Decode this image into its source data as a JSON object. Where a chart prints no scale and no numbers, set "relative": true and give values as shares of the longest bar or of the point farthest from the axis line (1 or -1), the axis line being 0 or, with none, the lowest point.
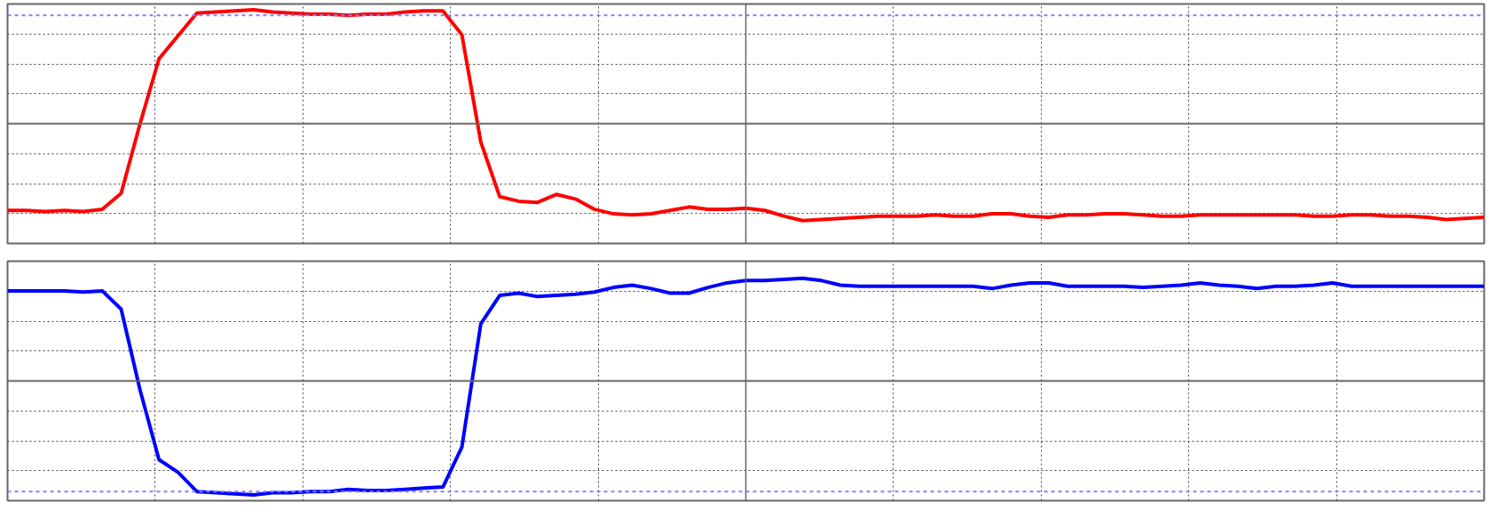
{
  "chart_data": [
    {
      "type": "line",
      "relative": true,
      "grid": true,
      "categories": [
        null,
        null,
        null,
        null,
        null,
        null,
        null,
        null,
        null,
        null,
        null,
        null,
        null,
        null,
        null,
        null,
        null,
        null,
        null,
        null,
        null,
        null,
        null,
        null,
        null,
        null,
        null,
        null,
        null,
        null,
        null,
        null,
        null,
        null,
        null,
        null,
        null,
        null,
        null,
        null,
        null,
        null,
        null,
        null,
        null,
        null,
        null,
        null,
        null,
        null,
        null,
        null,
        null,
        null,
        null,
        null,
        null,
        null,
        null,
        null,
        null,
        null,
        null,
        null,
        null,
        null,
        null,
        null,
        null,
        null,
        null,
        null,
        null,
        null,
        null,
        null,
        null,
        null,
        null
      ],
      "series": [
        {
          "color": "#ff0000",
          "values": [
            -0.76,
            -0.76,
            -0.77,
            -0.76,
            -0.77,
            -0.75,
            -0.61,
            0,
            0.57,
            0.77,
            0.97,
            0.98,
            0.99,
            1.0,
            0.98,
            0.97,
            0.96,
            0.96,
            0.95,
            0.96,
            0.96,
            0.98,
            0.99,
            0.99,
            0.78,
            -0.16,
            -0.64,
            -0.68,
            -0.69,
            -0.62,
            -0.66,
            -0.75,
            -0.79,
            -0.8,
            -0.79,
            -0.76,
            -0.73,
            -0.75,
            -0.75,
            -0.74,
            -0.76,
            -0.81,
            -0.85,
            -0.84,
            -0.83,
            -0.82,
            -0.81,
            -0.81,
            -0.81,
            -0.8,
            -0.81,
            -0.81,
            -0.79,
            -0.79,
            -0.81,
            -0.82,
            -0.8,
            -0.8,
            -0.79,
            -0.79,
            -0.8,
            -0.81,
            -0.81,
            -0.8,
            -0.8,
            -0.8,
            -0.8,
            -0.8,
            -0.8,
            -0.81,
            -0.81,
            -0.8,
            -0.8,
            -0.81,
            -0.81,
            -0.82,
            -0.84,
            -0.83,
            -0.82
          ]
        }
      ],
      "ref_lines": [
        {
          "axis": "y",
          "value": 0.95,
          "color": "#8080ff",
          "line_style": "dashed"
        }
      ]
    },
    {
      "type": "line",
      "relative": true,
      "grid": true,
      "categories": [
        null,
        null,
        null,
        null,
        null,
        null,
        null,
        null,
        null,
        null,
        null,
        null,
        null,
        null,
        null,
        null,
        null,
        null,
        null,
        null,
        null,
        null,
        null,
        null,
        null,
        null,
        null,
        null,
        null,
        null,
        null,
        null,
        null,
        null,
        null,
        null,
        null,
        null,
        null,
        null,
        null,
        null,
        null,
        null,
        null,
        null,
        null,
        null,
        null,
        null,
        null,
        null,
        null,
        null,
        null,
        null,
        null,
        null,
        null,
        null,
        null,
        null,
        null,
        null,
        null,
        null,
        null,
        null,
        null,
        null,
        null,
        null,
        null,
        null,
        null,
        null,
        null,
        null,
        null
      ],
      "series": [
        {
          "color": "#0000ff",
          "values": [
            0.79,
            0.79,
            0.79,
            0.79,
            0.78,
            0.79,
            0.63,
            -0.08,
            -0.69,
            -0.8,
            -0.97,
            -0.98,
            -0.99,
            -1.0,
            -0.98,
            -0.98,
            -0.97,
            -0.97,
            -0.95,
            -0.96,
            -0.96,
            -0.95,
            -0.94,
            -0.93,
            -0.58,
            0.5,
            0.75,
            0.77,
            0.74,
            0.75,
            0.76,
            0.78,
            0.82,
            0.84,
            0.81,
            0.77,
            0.77,
            0.82,
            0.86,
            0.88,
            0.88,
            0.89,
            0.9,
            0.88,
            0.84,
            0.83,
            0.83,
            0.83,
            0.83,
            0.83,
            0.83,
            0.83,
            0.81,
            0.84,
            0.86,
            0.86,
            0.83,
            0.83,
            0.83,
            0.83,
            0.82,
            0.83,
            0.84,
            0.86,
            0.84,
            0.83,
            0.81,
            0.83,
            0.83,
            0.84,
            0.86,
            0.83,
            0.83,
            0.83,
            0.83,
            0.83,
            0.83,
            0.83,
            0.83
          ]
        }
      ],
      "ref_lines": [
        {
          "axis": "y",
          "value": -0.97,
          "color": "#8080ff",
          "line_style": "dashed"
        }
      ]
    }
  ]
}
